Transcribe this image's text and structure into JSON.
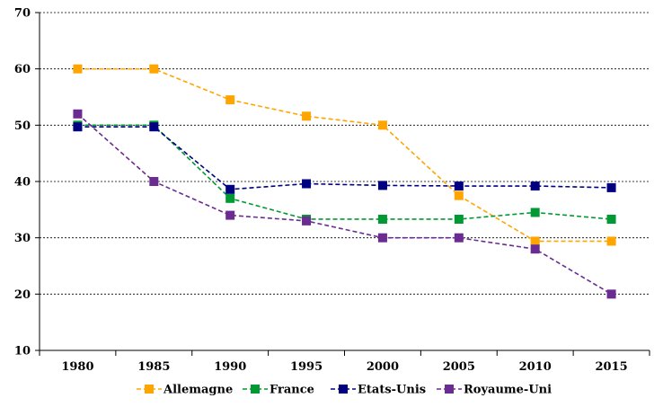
{
  "chart_data": {
    "type": "line",
    "title": "",
    "xlabel": "",
    "ylabel": "",
    "x": [
      "1980",
      "1985",
      "1990",
      "1995",
      "2000",
      "2005",
      "2010",
      "2015"
    ],
    "ylim": [
      10,
      70
    ],
    "yticks": [
      10,
      20,
      30,
      40,
      50,
      60,
      70
    ],
    "grid": "horizontal-dashed",
    "legend_position": "bottom",
    "series": [
      {
        "name": "Allemagne",
        "color": "#FFA500",
        "values": [
          60,
          60,
          54.5,
          51.6,
          50,
          37.5,
          29.4,
          29.4
        ]
      },
      {
        "name": "France",
        "color": "#009933",
        "values": [
          50,
          50,
          37,
          33.3,
          33.3,
          33.3,
          34.5,
          33.3
        ]
      },
      {
        "name": "Etats-Unis",
        "color": "#000080",
        "values": [
          49.7,
          49.7,
          38.6,
          39.6,
          39.3,
          39.2,
          39.2,
          38.9
        ]
      },
      {
        "name": "Royaume-Uni",
        "color": "#6B2C91",
        "values": [
          52,
          40,
          34,
          33,
          30,
          30,
          28,
          20
        ]
      }
    ]
  }
}
